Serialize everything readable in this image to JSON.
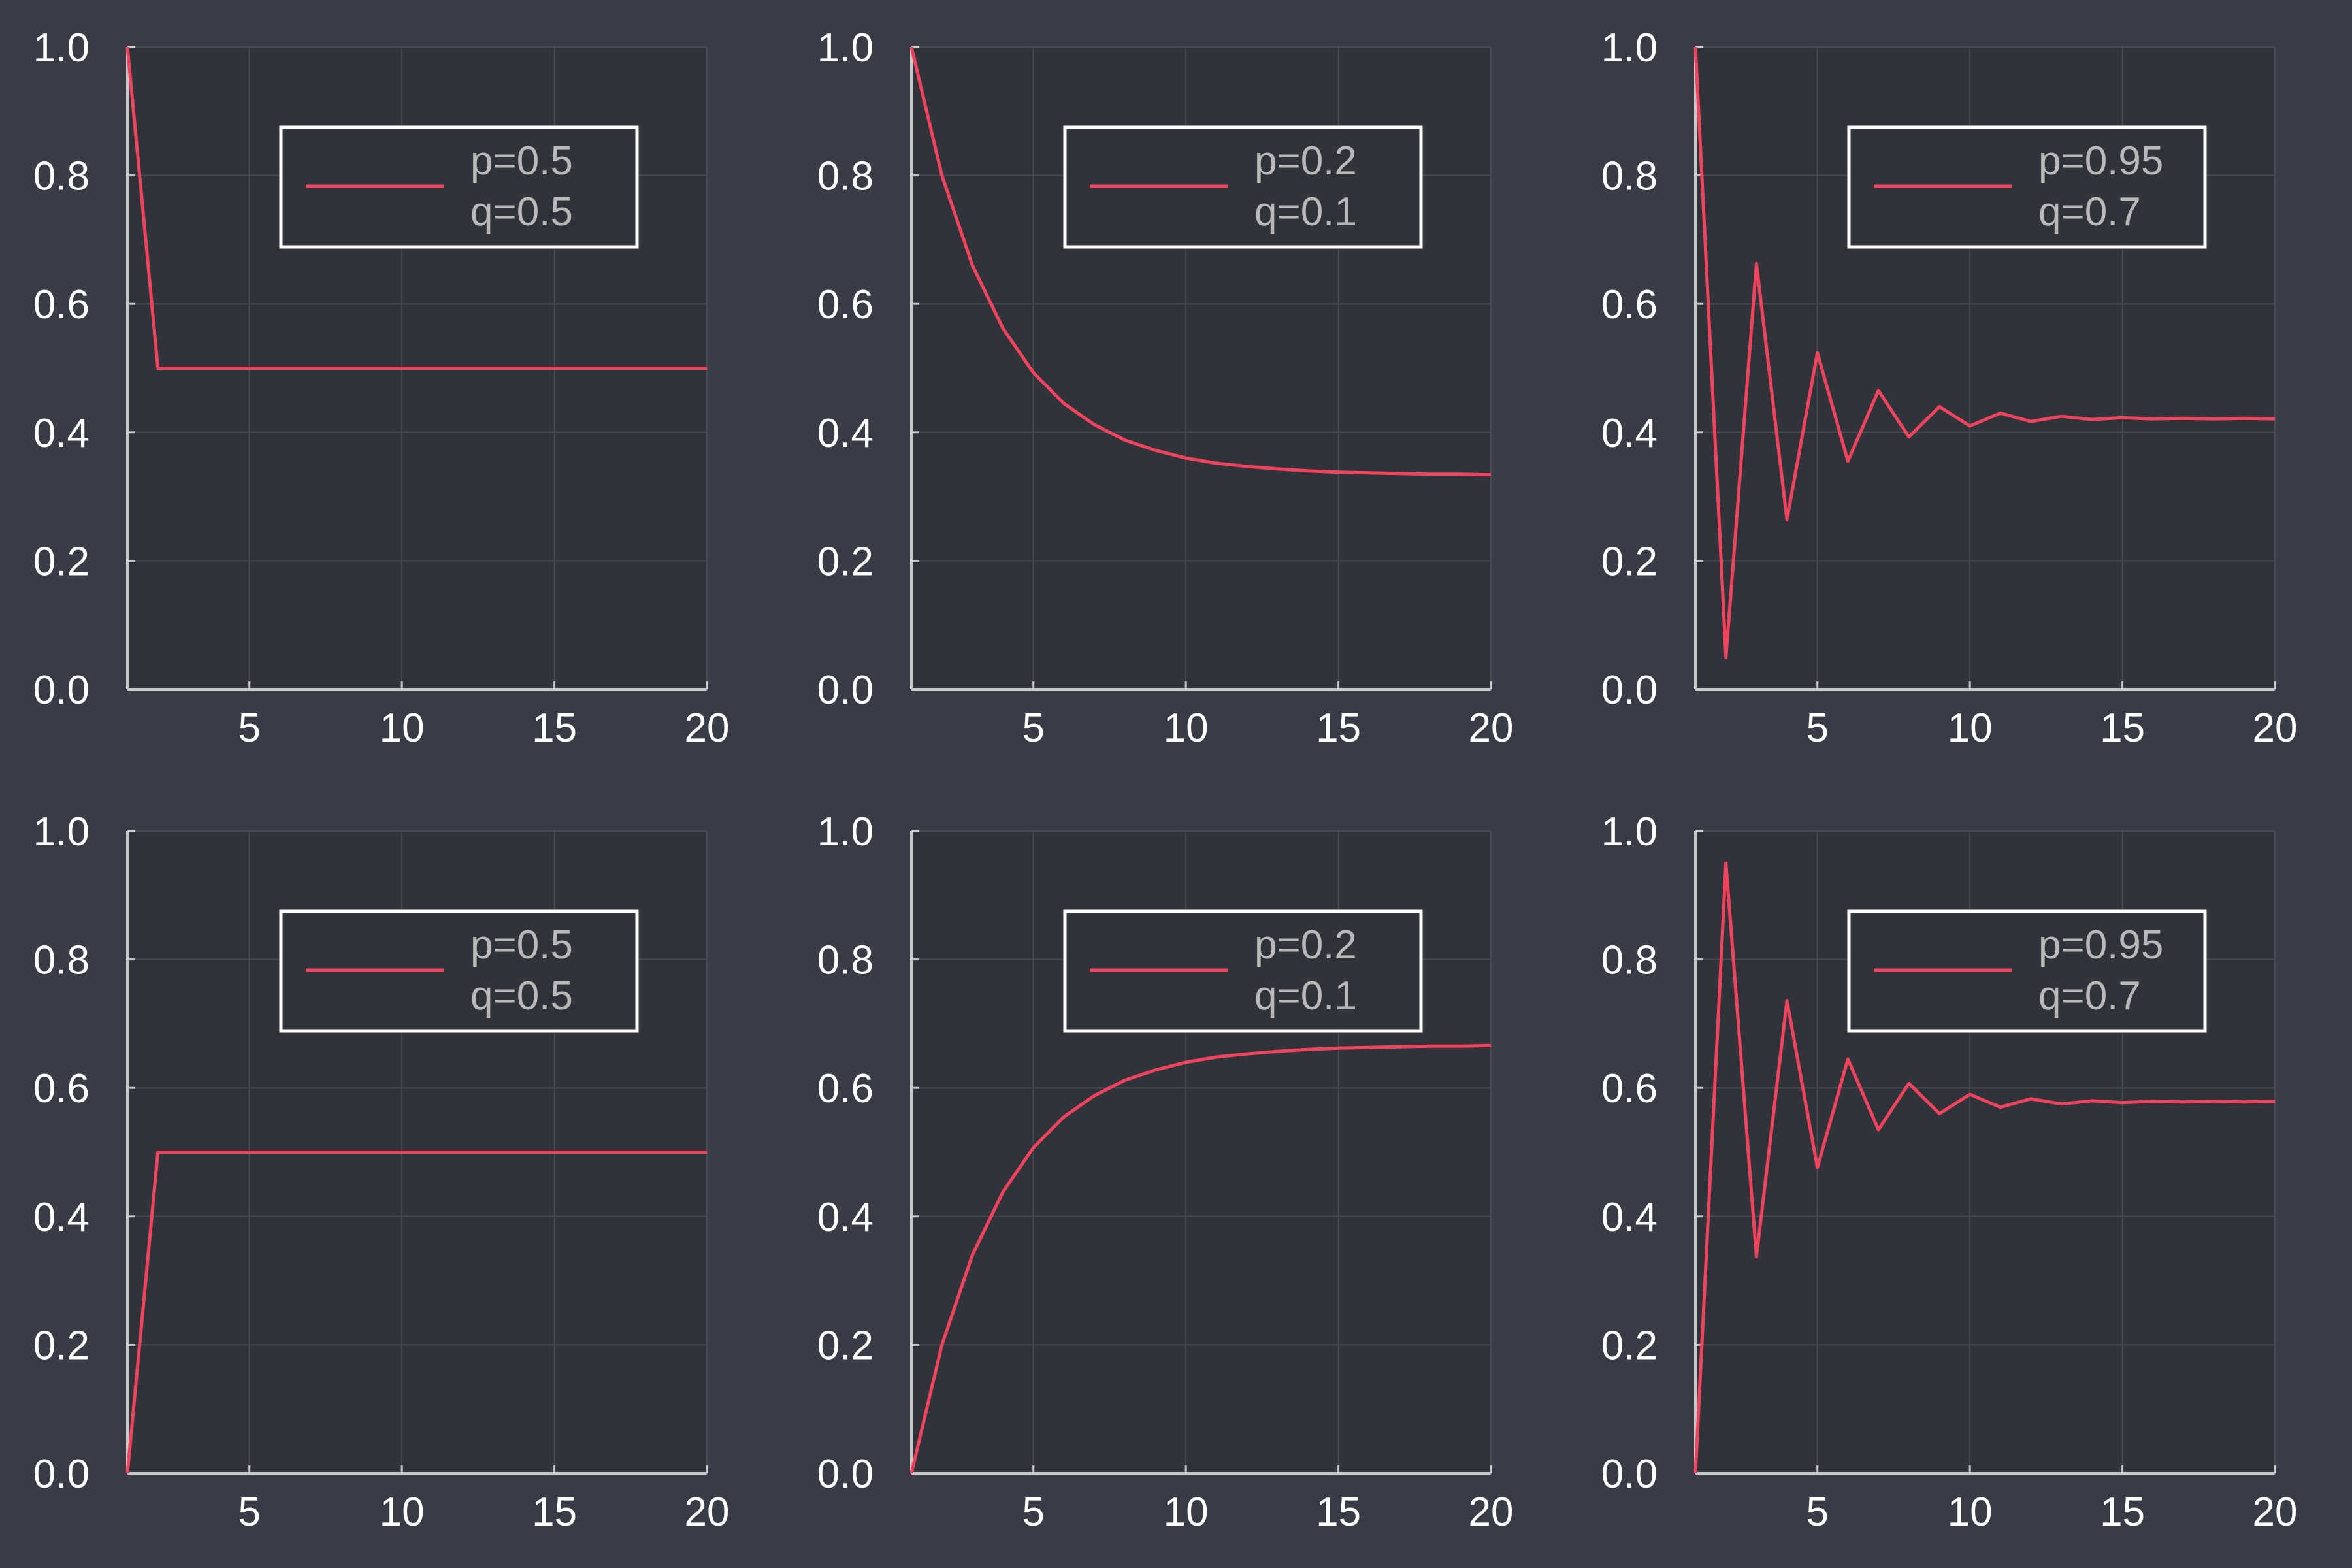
{
  "style": {
    "background": "#373c46",
    "plot_background": "#30343a",
    "series_color": "#f0435d",
    "axis_color": "#c8c8c8",
    "grid_color": "#454a53",
    "legend_border": "#ffffff",
    "legend_text_color": "#b9b9b9",
    "tick_color": "#ffffff"
  },
  "chart_data": [
    {
      "type": "line",
      "position": "top-left",
      "legend": [
        "p=0.5",
        "q=0.5"
      ],
      "legend_placement": "top-right",
      "xlim": [
        1,
        20
      ],
      "ylim": [
        0,
        1
      ],
      "xticks": [
        5,
        10,
        15,
        20
      ],
      "xtick_labels": [
        "5",
        "10",
        "15",
        "20"
      ],
      "yticks": [
        0,
        0.2,
        0.4,
        0.6,
        0.8,
        1.0
      ],
      "ytick_labels": [
        "0.0",
        "0.2",
        "0.4",
        "0.6",
        "0.8",
        "1.0"
      ],
      "grid": true,
      "x": [
        1,
        2,
        3,
        4,
        5,
        6,
        7,
        8,
        9,
        10,
        11,
        12,
        13,
        14,
        15,
        16,
        17,
        18,
        19,
        20
      ],
      "y": [
        1.0,
        0.5,
        0.5,
        0.5,
        0.5,
        0.5,
        0.5,
        0.5,
        0.5,
        0.5,
        0.5,
        0.5,
        0.5,
        0.5,
        0.5,
        0.5,
        0.5,
        0.5,
        0.5,
        0.5
      ]
    },
    {
      "type": "line",
      "position": "top-middle",
      "legend": [
        "p=0.2",
        "q=0.1"
      ],
      "legend_placement": "top-right",
      "xlim": [
        1,
        20
      ],
      "ylim": [
        0,
        1
      ],
      "xticks": [
        5,
        10,
        15,
        20
      ],
      "xtick_labels": [
        "5",
        "10",
        "15",
        "20"
      ],
      "yticks": [
        0,
        0.2,
        0.4,
        0.6,
        0.8,
        1.0
      ],
      "ytick_labels": [
        "0.0",
        "0.2",
        "0.4",
        "0.6",
        "0.8",
        "1.0"
      ],
      "grid": true,
      "x": [
        1,
        2,
        3,
        4,
        5,
        6,
        7,
        8,
        9,
        10,
        11,
        12,
        13,
        14,
        15,
        16,
        17,
        18,
        19,
        20
      ],
      "y": [
        1.0,
        0.8,
        0.66,
        0.562,
        0.493,
        0.445,
        0.412,
        0.388,
        0.372,
        0.36,
        0.352,
        0.347,
        0.343,
        0.34,
        0.338,
        0.337,
        0.336,
        0.335,
        0.335,
        0.334
      ]
    },
    {
      "type": "line",
      "position": "top-right",
      "legend": [
        "p=0.95",
        "q=0.7"
      ],
      "legend_placement": "top-right",
      "xlim": [
        1,
        20
      ],
      "ylim": [
        0,
        1
      ],
      "xticks": [
        5,
        10,
        15,
        20
      ],
      "xtick_labels": [
        "5",
        "10",
        "15",
        "20"
      ],
      "yticks": [
        0,
        0.2,
        0.4,
        0.6,
        0.8,
        1.0
      ],
      "ytick_labels": [
        "0.0",
        "0.2",
        "0.4",
        "0.6",
        "0.8",
        "1.0"
      ],
      "grid": true,
      "x": [
        1,
        2,
        3,
        4,
        5,
        6,
        7,
        8,
        9,
        10,
        11,
        12,
        13,
        14,
        15,
        16,
        17,
        18,
        19,
        20
      ],
      "y": [
        1.0,
        0.05,
        0.663,
        0.264,
        0.524,
        0.355,
        0.465,
        0.393,
        0.44,
        0.41,
        0.43,
        0.417,
        0.425,
        0.42,
        0.423,
        0.421,
        0.422,
        0.421,
        0.422,
        0.421
      ]
    },
    {
      "type": "line",
      "position": "bottom-left",
      "legend": [
        "p=0.5",
        "q=0.5"
      ],
      "legend_placement": "top-right",
      "xlim": [
        1,
        20
      ],
      "ylim": [
        0,
        1
      ],
      "xticks": [
        5,
        10,
        15,
        20
      ],
      "xtick_labels": [
        "5",
        "10",
        "15",
        "20"
      ],
      "yticks": [
        0,
        0.2,
        0.4,
        0.6,
        0.8,
        1.0
      ],
      "ytick_labels": [
        "0.0",
        "0.2",
        "0.4",
        "0.6",
        "0.8",
        "1.0"
      ],
      "grid": true,
      "x": [
        1,
        2,
        3,
        4,
        5,
        6,
        7,
        8,
        9,
        10,
        11,
        12,
        13,
        14,
        15,
        16,
        17,
        18,
        19,
        20
      ],
      "y": [
        0.0,
        0.5,
        0.5,
        0.5,
        0.5,
        0.5,
        0.5,
        0.5,
        0.5,
        0.5,
        0.5,
        0.5,
        0.5,
        0.5,
        0.5,
        0.5,
        0.5,
        0.5,
        0.5,
        0.5
      ]
    },
    {
      "type": "line",
      "position": "bottom-middle",
      "legend": [
        "p=0.2",
        "q=0.1"
      ],
      "legend_placement": "top-right",
      "xlim": [
        1,
        20
      ],
      "ylim": [
        0,
        1
      ],
      "xticks": [
        5,
        10,
        15,
        20
      ],
      "xtick_labels": [
        "5",
        "10",
        "15",
        "20"
      ],
      "yticks": [
        0,
        0.2,
        0.4,
        0.6,
        0.8,
        1.0
      ],
      "ytick_labels": [
        "0.0",
        "0.2",
        "0.4",
        "0.6",
        "0.8",
        "1.0"
      ],
      "grid": true,
      "x": [
        1,
        2,
        3,
        4,
        5,
        6,
        7,
        8,
        9,
        10,
        11,
        12,
        13,
        14,
        15,
        16,
        17,
        18,
        19,
        20
      ],
      "y": [
        0.0,
        0.2,
        0.34,
        0.438,
        0.507,
        0.555,
        0.588,
        0.612,
        0.628,
        0.64,
        0.648,
        0.653,
        0.657,
        0.66,
        0.662,
        0.663,
        0.664,
        0.665,
        0.665,
        0.666
      ]
    },
    {
      "type": "line",
      "position": "bottom-right",
      "legend": [
        "p=0.95",
        "q=0.7"
      ],
      "legend_placement": "top-right",
      "xlim": [
        1,
        20
      ],
      "ylim": [
        0,
        1
      ],
      "xticks": [
        5,
        10,
        15,
        20
      ],
      "xtick_labels": [
        "5",
        "10",
        "15",
        "20"
      ],
      "yticks": [
        0,
        0.2,
        0.4,
        0.6,
        0.8,
        1.0
      ],
      "ytick_labels": [
        "0.0",
        "0.2",
        "0.4",
        "0.6",
        "0.8",
        "1.0"
      ],
      "grid": true,
      "x": [
        1,
        2,
        3,
        4,
        5,
        6,
        7,
        8,
        9,
        10,
        11,
        12,
        13,
        14,
        15,
        16,
        17,
        18,
        19,
        20
      ],
      "y": [
        0.0,
        0.95,
        0.337,
        0.736,
        0.476,
        0.645,
        0.535,
        0.607,
        0.56,
        0.59,
        0.57,
        0.583,
        0.575,
        0.58,
        0.577,
        0.579,
        0.578,
        0.579,
        0.578,
        0.579
      ]
    }
  ]
}
